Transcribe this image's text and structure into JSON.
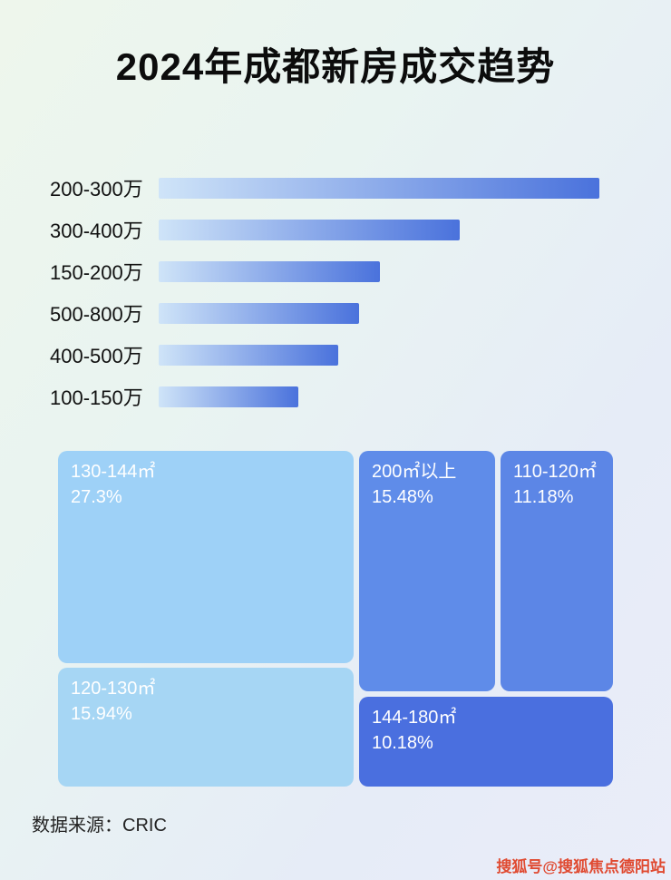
{
  "page": {
    "title": "2024年成都新房成交趋势",
    "source_label": "数据来源：CRIC",
    "watermark": "搜狐号@搜狐焦点德阳站"
  },
  "colors": {
    "bar_gradient_start": "#cfe4f8",
    "bar_gradient_end": "#4a72dc",
    "title_text": "#0c0c0c",
    "watermark_text": "#e04a31"
  },
  "chart_data": [
    {
      "type": "bar",
      "orientation": "horizontal",
      "title": "2024年成都新房成交趋势",
      "categories": [
        "200-300万",
        "300-400万",
        "150-200万",
        "500-800万",
        "400-500万",
        "100-150万"
      ],
      "values": [
        100,
        68.3,
        50.3,
        45.5,
        40.8,
        31.7
      ],
      "value_unit": "relative bar length, percent of longest bar (no numeric axis shown)",
      "xlabel": "",
      "ylabel": "",
      "grid": false,
      "axis_visible": false,
      "legend": false
    },
    {
      "type": "treemap",
      "title": "",
      "items": [
        {
          "label": "130-144㎡",
          "percent": "27.3%",
          "value": 27.3,
          "color": "#9ed1f7"
        },
        {
          "label": "120-130㎡",
          "percent": "15.94%",
          "value": 15.94,
          "color": "#a6d6f4"
        },
        {
          "label": "200㎡以上",
          "percent": "15.48%",
          "value": 15.48,
          "color": "#5f8ce9"
        },
        {
          "label": "110-120㎡",
          "percent": "11.18%",
          "value": 11.18,
          "color": "#5c86e6"
        },
        {
          "label": "144-180㎡",
          "percent": "10.18%",
          "value": 10.18,
          "color": "#4a6fdf"
        }
      ],
      "legend": false
    }
  ]
}
